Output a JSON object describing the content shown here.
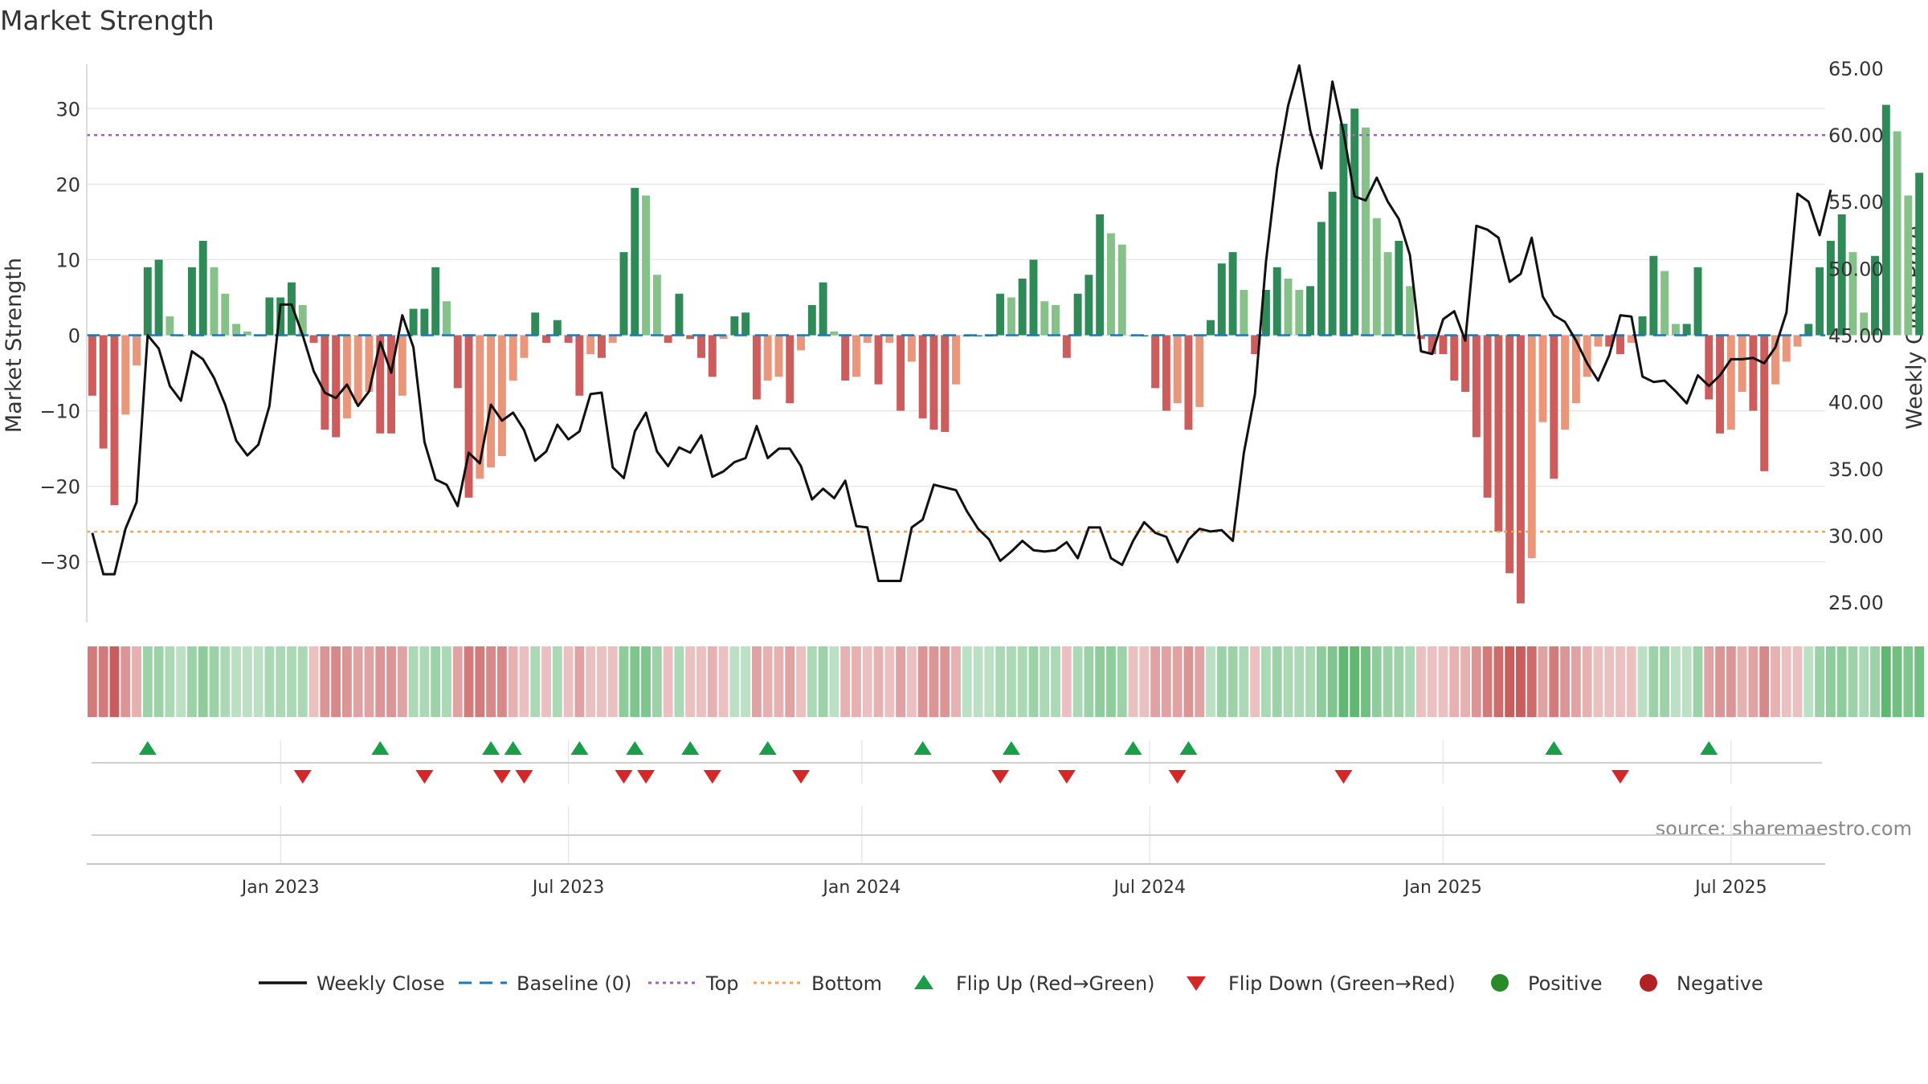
{
  "chart_data": {
    "type": "bar",
    "title": "Market Strength",
    "source_note": "source: sharemaestro.com",
    "y_left_label": "Market Strength",
    "y_right_label": "Weekly Close Price",
    "y_left_ticks": [
      "30",
      "20",
      "10",
      "0",
      "−10",
      "−20",
      "−30"
    ],
    "y_left_tick_values": [
      30,
      20,
      10,
      0,
      -10,
      -20,
      -30
    ],
    "y_left_range": [
      -38,
      38
    ],
    "y_right_ticks": [
      "65.00",
      "60.00",
      "55.00",
      "50.00",
      "45.00",
      "40.00",
      "35.00",
      "30.00",
      "25.00"
    ],
    "y_right_tick_values": [
      65,
      60,
      55,
      50,
      45,
      40,
      35,
      30,
      25
    ],
    "y_right_range": [
      23.5,
      66.5
    ],
    "x_ticks": [
      {
        "label": "Jan 2023",
        "week": 17
      },
      {
        "label": "Jul 2023",
        "week": 43
      },
      {
        "label": "Jan 2024",
        "week": 69.5
      },
      {
        "label": "Jul 2024",
        "week": 95.5
      },
      {
        "label": "Jan 2025",
        "week": 122
      },
      {
        "label": "Jul 2025",
        "week": 148
      }
    ],
    "x_range": [
      -0.5,
      156.5
    ],
    "top_threshold": 26.5,
    "bottom_threshold": -26,
    "strength": [
      -8,
      -15,
      -22.5,
      -10.5,
      -4,
      9,
      10,
      2.5,
      0,
      9,
      12.5,
      9,
      5.5,
      1.5,
      0.5,
      0,
      5,
      5,
      7,
      4,
      -1,
      -12.5,
      -13.5,
      -11,
      -9,
      -7.5,
      -13,
      -13,
      -8,
      3.5,
      3.5,
      9,
      4.5,
      -7,
      -21.5,
      -19,
      -17.5,
      -16,
      -6,
      -3,
      3,
      -1,
      2,
      -1,
      -8,
      -2.5,
      -3,
      -1,
      11,
      19.5,
      18.5,
      8,
      -1,
      5.5,
      -0.5,
      -3,
      -5.5,
      -0.5,
      2.5,
      3,
      -8.5,
      -6,
      -5.5,
      -9,
      -2,
      4,
      7,
      0.5,
      -6,
      -5.5,
      -1,
      -6.5,
      -1,
      -10,
      -3.5,
      -11,
      -12.5,
      -12.8,
      -6.5,
      0,
      0,
      0,
      5.5,
      5,
      7.5,
      10,
      4.5,
      4,
      -3,
      5.5,
      8,
      16,
      13.5,
      12,
      0,
      0,
      -7,
      -10,
      -9,
      -12.5,
      -9.5,
      2,
      9.5,
      11,
      6,
      -2.5,
      6,
      9,
      7.5,
      6,
      6.5,
      15,
      19,
      28,
      30,
      27.5,
      15.5,
      11,
      12.5,
      6.5,
      -0.5,
      -2.5,
      -2.5,
      -6,
      -7.5,
      -13.5,
      -21.5,
      -26,
      -31.5,
      -35.5,
      -29.5,
      -11.5,
      -19,
      -12.5,
      -9,
      -5.5,
      -1.5,
      -1.5,
      -2.5,
      -1,
      2.5,
      10.5,
      8.5,
      1.5,
      1.5,
      9,
      -8.5,
      -13,
      -12.5,
      -7.5,
      -10,
      -18,
      -6.5,
      -3.5,
      -1.5,
      1.5,
      9,
      12.5,
      16,
      11,
      3,
      10.5,
      30.5,
      27,
      18.5,
      21.5
    ],
    "close": [
      30.2,
      27.1,
      27.1,
      30.5,
      32.5,
      45,
      44,
      41.2,
      40.1,
      43.8,
      43.2,
      41.8,
      39.8,
      37.1,
      36,
      36.8,
      39.7,
      47.3,
      47.3,
      45,
      42.3,
      40.7,
      40.3,
      41.3,
      39.7,
      40.8,
      44.5,
      42.2,
      46.5,
      44.1,
      37,
      34.2,
      33.8,
      32.2,
      36.2,
      35.4,
      39.8,
      38.6,
      39.2,
      37.9,
      35.6,
      36.3,
      38.3,
      37.2,
      37.8,
      40.6,
      40.7,
      35.1,
      34.3,
      37.8,
      39.2,
      36.3,
      35.2,
      36.6,
      36.2,
      37.5,
      34.4,
      34.8,
      35.5,
      35.8,
      38.2,
      35.8,
      36.5,
      36.5,
      35.2,
      32.7,
      33.5,
      32.8,
      34.1,
      30.7,
      30.6,
      26.6,
      26.6,
      26.6,
      30.6,
      31.2,
      33.8,
      33.6,
      33.4,
      31.8,
      30.5,
      29.7,
      28.1,
      28.8,
      29.6,
      28.9,
      28.8,
      28.9,
      29.5,
      28.3,
      30.6,
      30.6,
      28.3,
      27.8,
      29.6,
      31,
      30.2,
      29.9,
      28,
      29.7,
      30.5,
      30.3,
      30.4,
      29.6,
      36.2,
      40.6,
      50.5,
      57.5,
      62.2,
      65.2,
      60.3,
      57.5,
      64,
      60.2,
      55.4,
      55.1,
      56.8,
      55,
      53.7,
      51,
      43.8,
      43.6,
      46.2,
      46.8,
      44.6,
      53.2,
      52.9,
      52.3,
      49,
      49.6,
      52.3,
      47.9,
      46.5,
      46,
      44.6,
      42.9,
      41.6,
      43.5,
      46.5,
      46.4,
      41.9,
      41.5,
      41.6,
      40.8,
      39.9,
      42,
      41.2,
      42,
      43.2,
      43.2,
      43.3,
      42.9,
      44.1,
      46.7,
      55.6,
      55,
      52.5,
      55.9
    ],
    "ribbon_intensity": [
      -0.7,
      -0.7,
      -0.9,
      -0.5,
      -0.3,
      0.4,
      0.4,
      0.3,
      0.2,
      0.4,
      0.5,
      0.4,
      0.3,
      0.2,
      0.2,
      0.2,
      0.3,
      0.3,
      0.3,
      0.3,
      -0.2,
      -0.5,
      -0.6,
      -0.5,
      -0.4,
      -0.4,
      -0.5,
      -0.5,
      -0.4,
      0.3,
      0.3,
      0.4,
      0.3,
      -0.4,
      -0.7,
      -0.7,
      -0.6,
      -0.6,
      -0.3,
      -0.2,
      0.3,
      -0.2,
      0.3,
      -0.2,
      -0.4,
      -0.2,
      -0.2,
      -0.2,
      0.5,
      0.6,
      0.6,
      0.4,
      -0.2,
      0.3,
      -0.2,
      -0.2,
      -0.3,
      -0.2,
      0.2,
      0.2,
      -0.4,
      -0.3,
      -0.3,
      -0.4,
      -0.2,
      0.3,
      0.4,
      0.2,
      -0.3,
      -0.3,
      -0.2,
      -0.3,
      -0.2,
      -0.4,
      -0.2,
      -0.5,
      -0.5,
      -0.5,
      -0.3,
      0.2,
      0.2,
      0.2,
      0.3,
      0.3,
      0.3,
      0.4,
      0.3,
      0.3,
      -0.2,
      0.3,
      0.4,
      0.5,
      0.5,
      0.4,
      -0.2,
      -0.2,
      -0.4,
      -0.4,
      -0.4,
      -0.5,
      -0.4,
      0.2,
      0.4,
      0.4,
      0.3,
      -0.2,
      0.3,
      0.4,
      0.3,
      0.3,
      0.3,
      0.5,
      0.6,
      0.8,
      0.8,
      0.7,
      0.5,
      0.4,
      0.4,
      0.3,
      -0.2,
      -0.2,
      -0.2,
      -0.3,
      -0.3,
      -0.5,
      -0.7,
      -0.8,
      -0.9,
      -0.9,
      -0.8,
      -0.4,
      -0.7,
      -0.5,
      -0.4,
      -0.3,
      -0.2,
      -0.2,
      -0.2,
      -0.2,
      0.2,
      0.4,
      0.4,
      0.2,
      0.2,
      0.4,
      -0.4,
      -0.5,
      -0.5,
      -0.3,
      -0.4,
      -0.6,
      -0.3,
      -0.2,
      -0.2,
      0.2,
      0.4,
      0.5,
      0.5,
      0.4,
      0.3,
      0.4,
      0.8,
      0.7,
      0.6,
      0.7
    ],
    "flip_up_weeks": [
      5,
      26,
      36,
      38,
      44,
      49,
      54,
      61,
      75,
      83,
      94,
      99,
      132,
      146
    ],
    "flip_down_weeks": [
      19,
      30,
      37,
      39,
      48,
      50,
      56,
      64,
      82,
      88,
      98,
      113,
      138
    ],
    "legend": [
      {
        "label": "Weekly Close",
        "type": "line",
        "color": "#111111"
      },
      {
        "label": "Baseline (0)",
        "type": "dash",
        "color": "#1f77b4"
      },
      {
        "label": "Top",
        "type": "dot",
        "color": "#9467bd"
      },
      {
        "label": "Bottom",
        "type": "dot",
        "color": "#ff9f4a"
      },
      {
        "label": "Flip Up (Red→Green)",
        "type": "tri-up",
        "color": "#1a9e4a"
      },
      {
        "label": "Flip Down (Green→Red)",
        "type": "tri-down",
        "color": "#d62728"
      },
      {
        "label": "Positive",
        "type": "circle",
        "color": "#2a8a2a"
      },
      {
        "label": "Negative",
        "type": "circle",
        "color": "#b22222"
      }
    ],
    "grid": true
  },
  "colors": {
    "pos_strong": "#2e8b57",
    "pos_light": "#86c18a",
    "neg_strong": "#cd5c5c",
    "neg_light": "#e9967a",
    "line": "#111111",
    "baseline": "#1f77b4",
    "top": "#9467bd",
    "bottom": "#ff9f4a",
    "flip_up": "#1a9e4a",
    "flip_down": "#d62728",
    "grid": "#e8e8e8",
    "axis_text": "#333333",
    "source_text": "#888888"
  }
}
